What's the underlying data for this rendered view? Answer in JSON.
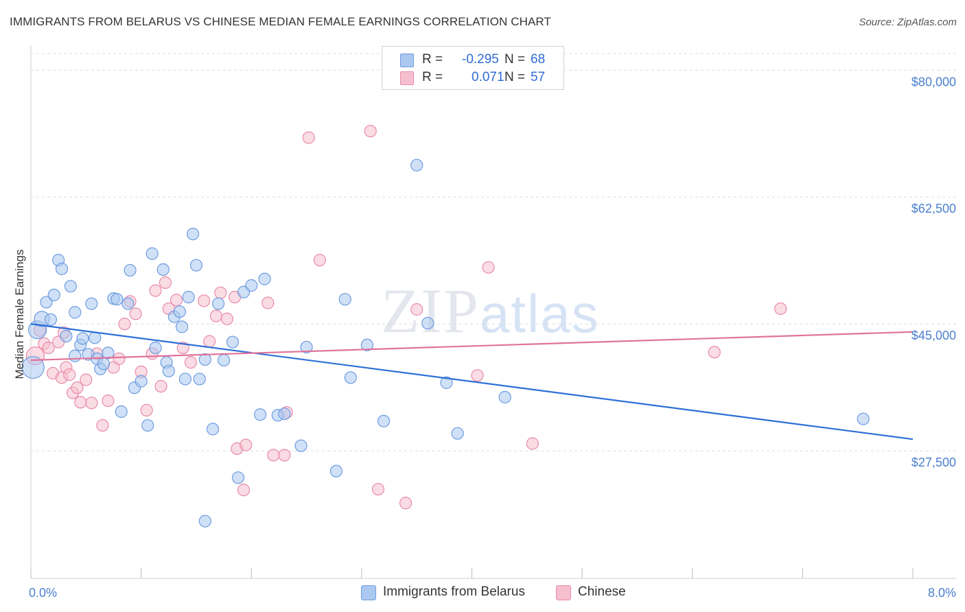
{
  "header": {
    "title": "IMMIGRANTS FROM BELARUS VS CHINESE MEDIAN FEMALE EARNINGS CORRELATION CHART",
    "source": "Source: ZipAtlas.com"
  },
  "watermark": {
    "zip": "ZIP",
    "atlas": "atlas"
  },
  "legend": {
    "rows": [
      {
        "r_label": "R =",
        "r_value": "-0.295",
        "n_label": "N =",
        "n_value": "68"
      },
      {
        "r_label": "R =",
        "r_value": "0.071",
        "n_label": "N =",
        "n_value": "57"
      }
    ]
  },
  "bottom_legend": [
    {
      "label": "Immigrants from Belarus"
    },
    {
      "label": "Chinese"
    }
  ],
  "colors": {
    "belarus_fill": "#aac8f0",
    "belarus_stroke": "#6d9be0",
    "belarus_line": "#2b6fd6",
    "chinese_fill": "#f6bfd0",
    "chinese_stroke": "#e88aa8",
    "chinese_line": "#e0739a",
    "grid": "#dddddd",
    "tick_label": "#4a7fd0"
  },
  "chart_data": {
    "type": "scatter",
    "title": "IMMIGRANTS FROM BELARUS VS CHINESE MEDIAN FEMALE EARNINGS CORRELATION CHART",
    "xlabel": "",
    "ylabel": "Median Female Earnings",
    "xlim": [
      0,
      8
    ],
    "ylim": [
      10000,
      84000
    ],
    "x_tick_labels": [
      {
        "value": 0,
        "label": "0.0%"
      },
      {
        "value": 8,
        "label": "8.0%"
      }
    ],
    "y_ticks": [
      {
        "value": 27500,
        "label": "$27,500"
      },
      {
        "value": 45000,
        "label": "$45,000"
      },
      {
        "value": 62500,
        "label": "$62,500"
      },
      {
        "value": 80000,
        "label": "$80,000"
      }
    ],
    "grid": true,
    "legend_position": "top-center",
    "series": [
      {
        "name": "Immigrants from Belarus",
        "R": -0.295,
        "N": 68,
        "trend": {
          "x": [
            0,
            8
          ],
          "y": [
            45000,
            29100
          ]
        },
        "points": [
          {
            "x": 0.02,
            "y": 39000,
            "r": 16
          },
          {
            "x": 0.06,
            "y": 44200,
            "r": 13
          },
          {
            "x": 0.1,
            "y": 45700,
            "r": 11
          },
          {
            "x": 0.14,
            "y": 48000
          },
          {
            "x": 0.18,
            "y": 45600
          },
          {
            "x": 0.21,
            "y": 49000
          },
          {
            "x": 0.25,
            "y": 53800
          },
          {
            "x": 0.28,
            "y": 52600
          },
          {
            "x": 0.32,
            "y": 43300
          },
          {
            "x": 0.36,
            "y": 50200
          },
          {
            "x": 0.4,
            "y": 46600
          },
          {
            "x": 0.45,
            "y": 42100
          },
          {
            "x": 0.47,
            "y": 43000
          },
          {
            "x": 0.52,
            "y": 40800
          },
          {
            "x": 0.55,
            "y": 47800
          },
          {
            "x": 0.58,
            "y": 43100
          },
          {
            "x": 0.6,
            "y": 40200
          },
          {
            "x": 0.63,
            "y": 38800
          },
          {
            "x": 0.66,
            "y": 39500
          },
          {
            "x": 0.7,
            "y": 41000
          },
          {
            "x": 0.75,
            "y": 48500
          },
          {
            "x": 0.78,
            "y": 48400
          },
          {
            "x": 0.82,
            "y": 32900
          },
          {
            "x": 0.88,
            "y": 47800
          },
          {
            "x": 0.9,
            "y": 52400
          },
          {
            "x": 0.94,
            "y": 36200
          },
          {
            "x": 1.0,
            "y": 37100
          },
          {
            "x": 1.06,
            "y": 31000
          },
          {
            "x": 1.1,
            "y": 54700
          },
          {
            "x": 1.13,
            "y": 41700
          },
          {
            "x": 1.2,
            "y": 52500
          },
          {
            "x": 1.23,
            "y": 39700
          },
          {
            "x": 1.25,
            "y": 38500
          },
          {
            "x": 1.3,
            "y": 46000
          },
          {
            "x": 1.35,
            "y": 46700
          },
          {
            "x": 1.37,
            "y": 44600
          },
          {
            "x": 1.4,
            "y": 37400
          },
          {
            "x": 1.43,
            "y": 48700
          },
          {
            "x": 1.47,
            "y": 57400
          },
          {
            "x": 1.5,
            "y": 53100
          },
          {
            "x": 1.53,
            "y": 37400
          },
          {
            "x": 1.58,
            "y": 40100
          },
          {
            "x": 1.65,
            "y": 30500
          },
          {
            "x": 1.7,
            "y": 47800
          },
          {
            "x": 1.75,
            "y": 40000
          },
          {
            "x": 1.83,
            "y": 42500
          },
          {
            "x": 1.88,
            "y": 23800
          },
          {
            "x": 1.93,
            "y": 49400
          },
          {
            "x": 2.0,
            "y": 50300
          },
          {
            "x": 2.08,
            "y": 32500
          },
          {
            "x": 2.12,
            "y": 51200
          },
          {
            "x": 2.24,
            "y": 32400
          },
          {
            "x": 2.3,
            "y": 32600
          },
          {
            "x": 2.45,
            "y": 28200
          },
          {
            "x": 2.5,
            "y": 41800
          },
          {
            "x": 2.77,
            "y": 24700
          },
          {
            "x": 2.85,
            "y": 48400
          },
          {
            "x": 2.9,
            "y": 37600
          },
          {
            "x": 3.05,
            "y": 42100
          },
          {
            "x": 3.2,
            "y": 31600
          },
          {
            "x": 3.5,
            "y": 66900
          },
          {
            "x": 3.6,
            "y": 45100
          },
          {
            "x": 3.77,
            "y": 36900
          },
          {
            "x": 3.87,
            "y": 29900
          },
          {
            "x": 4.3,
            "y": 34900
          },
          {
            "x": 7.55,
            "y": 31900
          },
          {
            "x": 1.58,
            "y": 17800
          },
          {
            "x": 0.4,
            "y": 40600
          }
        ]
      },
      {
        "name": "Chinese",
        "R": 0.071,
        "N": 57,
        "trend": {
          "x": [
            0,
            8
          ],
          "y": [
            40000,
            43900
          ]
        },
        "points": [
          {
            "x": 0.04,
            "y": 40600,
            "r": 13
          },
          {
            "x": 0.08,
            "y": 44100
          },
          {
            "x": 0.12,
            "y": 42300
          },
          {
            "x": 0.16,
            "y": 41700
          },
          {
            "x": 0.2,
            "y": 38200
          },
          {
            "x": 0.25,
            "y": 42500
          },
          {
            "x": 0.28,
            "y": 37600
          },
          {
            "x": 0.32,
            "y": 39000
          },
          {
            "x": 0.35,
            "y": 38000
          },
          {
            "x": 0.38,
            "y": 35500
          },
          {
            "x": 0.42,
            "y": 36200
          },
          {
            "x": 0.45,
            "y": 34200
          },
          {
            "x": 0.5,
            "y": 37300
          },
          {
            "x": 0.55,
            "y": 34100
          },
          {
            "x": 0.6,
            "y": 40900
          },
          {
            "x": 0.65,
            "y": 31000
          },
          {
            "x": 0.7,
            "y": 34400
          },
          {
            "x": 0.75,
            "y": 39000
          },
          {
            "x": 0.8,
            "y": 40200
          },
          {
            "x": 0.85,
            "y": 45000
          },
          {
            "x": 0.9,
            "y": 48100
          },
          {
            "x": 0.95,
            "y": 46400
          },
          {
            "x": 1.0,
            "y": 38400
          },
          {
            "x": 1.05,
            "y": 33100
          },
          {
            "x": 1.1,
            "y": 40900
          },
          {
            "x": 1.13,
            "y": 49600
          },
          {
            "x": 1.18,
            "y": 36400
          },
          {
            "x": 1.22,
            "y": 50700
          },
          {
            "x": 1.25,
            "y": 47100
          },
          {
            "x": 1.32,
            "y": 48300
          },
          {
            "x": 1.38,
            "y": 41700
          },
          {
            "x": 1.45,
            "y": 39700
          },
          {
            "x": 1.57,
            "y": 48200
          },
          {
            "x": 1.62,
            "y": 42600
          },
          {
            "x": 1.68,
            "y": 46100
          },
          {
            "x": 1.72,
            "y": 49300
          },
          {
            "x": 1.78,
            "y": 45700
          },
          {
            "x": 1.85,
            "y": 48700
          },
          {
            "x": 1.87,
            "y": 27800
          },
          {
            "x": 1.93,
            "y": 22100
          },
          {
            "x": 1.95,
            "y": 28300
          },
          {
            "x": 2.15,
            "y": 47900
          },
          {
            "x": 2.2,
            "y": 26900
          },
          {
            "x": 2.3,
            "y": 26900
          },
          {
            "x": 2.32,
            "y": 32800
          },
          {
            "x": 2.52,
            "y": 70700
          },
          {
            "x": 2.62,
            "y": 53800
          },
          {
            "x": 3.08,
            "y": 71600
          },
          {
            "x": 3.15,
            "y": 22200
          },
          {
            "x": 3.4,
            "y": 20300
          },
          {
            "x": 3.5,
            "y": 47000
          },
          {
            "x": 4.05,
            "y": 37900
          },
          {
            "x": 4.15,
            "y": 52800
          },
          {
            "x": 4.55,
            "y": 28500
          },
          {
            "x": 6.2,
            "y": 41100
          },
          {
            "x": 6.8,
            "y": 47100
          },
          {
            "x": 0.3,
            "y": 43800
          }
        ]
      }
    ]
  },
  "axis_labels": {
    "x_left": "0.0%",
    "x_right": "8.0%",
    "ylabel": "Median Female Earnings"
  }
}
